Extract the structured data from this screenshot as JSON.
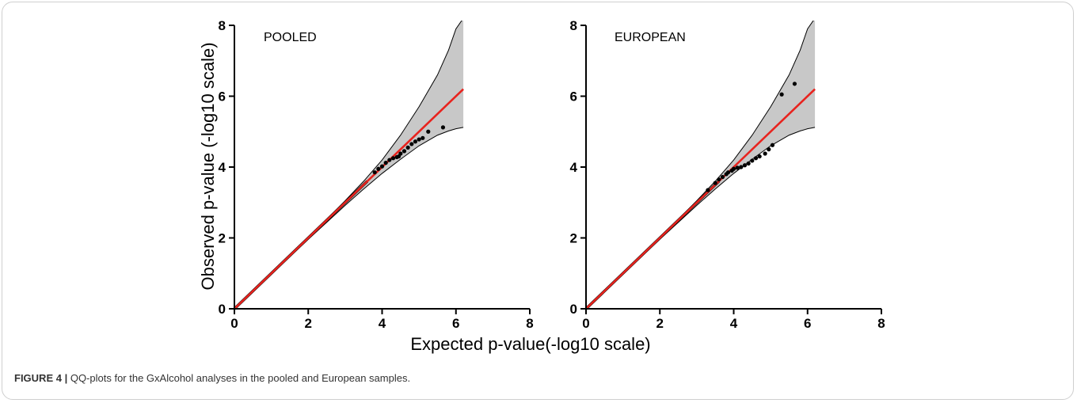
{
  "figure": {
    "caption_label": "FIGURE 4 |",
    "caption_text": "QQ-plots for the GxAlcohol analyses in the pooled and European samples."
  },
  "chart_data": [
    {
      "type": "scatter",
      "title": "POOLED",
      "ylabel": "Observed p-value (-log10 scale)",
      "xlabel": "Expected p-value(-log10 scale)",
      "xlim": [
        0,
        8
      ],
      "ylim": [
        0,
        8
      ],
      "xticks": [
        0,
        2,
        4,
        6,
        8
      ],
      "yticks": [
        0,
        2,
        4,
        6,
        8
      ],
      "colors": {
        "reference_line": "#e8231e",
        "points": "#000000",
        "band": "#c8c8c8"
      },
      "reference_line": {
        "x": [
          0,
          6.2
        ],
        "y": [
          0,
          6.2
        ]
      },
      "confidence_band": {
        "x": [
          0,
          1,
          2,
          3,
          3.5,
          4,
          4.5,
          5,
          5.5,
          5.8,
          6.0,
          6.2
        ],
        "upper": [
          0,
          1,
          2,
          3.05,
          3.6,
          4.2,
          4.9,
          5.7,
          6.6,
          7.3,
          7.9,
          8.2
        ],
        "lower": [
          0,
          0.98,
          1.96,
          2.92,
          3.38,
          3.82,
          4.22,
          4.6,
          4.9,
          5.02,
          5.08,
          5.12
        ]
      },
      "points": [
        {
          "x": 3.8,
          "y": 3.85
        },
        {
          "x": 3.9,
          "y": 3.95
        },
        {
          "x": 4.0,
          "y": 4.02
        },
        {
          "x": 4.1,
          "y": 4.12
        },
        {
          "x": 4.2,
          "y": 4.2
        },
        {
          "x": 4.3,
          "y": 4.25
        },
        {
          "x": 4.4,
          "y": 4.28
        },
        {
          "x": 4.45,
          "y": 4.3
        },
        {
          "x": 4.5,
          "y": 4.38
        },
        {
          "x": 4.6,
          "y": 4.45
        },
        {
          "x": 4.7,
          "y": 4.55
        },
        {
          "x": 4.8,
          "y": 4.65
        },
        {
          "x": 4.9,
          "y": 4.72
        },
        {
          "x": 5.0,
          "y": 4.78
        },
        {
          "x": 5.1,
          "y": 4.82
        },
        {
          "x": 5.25,
          "y": 5.0
        },
        {
          "x": 5.65,
          "y": 5.12
        }
      ]
    },
    {
      "type": "scatter",
      "title": "EUROPEAN",
      "ylabel": "",
      "xlabel": "",
      "xlim": [
        0,
        8
      ],
      "ylim": [
        0,
        8
      ],
      "xticks": [
        0,
        2,
        4,
        6,
        8
      ],
      "yticks": [
        0,
        2,
        4,
        6,
        8
      ],
      "colors": {
        "reference_line": "#e8231e",
        "points": "#000000",
        "band": "#c8c8c8"
      },
      "reference_line": {
        "x": [
          0,
          6.2
        ],
        "y": [
          0,
          6.2
        ]
      },
      "confidence_band": {
        "x": [
          0,
          1,
          2,
          3,
          3.5,
          4,
          4.5,
          5,
          5.5,
          5.8,
          6.0,
          6.2
        ],
        "upper": [
          0,
          1,
          2,
          3.05,
          3.6,
          4.2,
          4.9,
          5.7,
          6.6,
          7.3,
          7.9,
          8.2
        ],
        "lower": [
          0,
          0.98,
          1.96,
          2.92,
          3.38,
          3.82,
          4.22,
          4.6,
          4.9,
          5.02,
          5.08,
          5.12
        ]
      },
      "points": [
        {
          "x": 3.3,
          "y": 3.35
        },
        {
          "x": 3.5,
          "y": 3.55
        },
        {
          "x": 3.6,
          "y": 3.65
        },
        {
          "x": 3.7,
          "y": 3.72
        },
        {
          "x": 3.8,
          "y": 3.8
        },
        {
          "x": 3.85,
          "y": 3.85
        },
        {
          "x": 3.95,
          "y": 3.9
        },
        {
          "x": 4.0,
          "y": 3.95
        },
        {
          "x": 4.1,
          "y": 3.98
        },
        {
          "x": 4.2,
          "y": 4.0
        },
        {
          "x": 4.3,
          "y": 4.05
        },
        {
          "x": 4.4,
          "y": 4.1
        },
        {
          "x": 4.5,
          "y": 4.18
        },
        {
          "x": 4.6,
          "y": 4.25
        },
        {
          "x": 4.7,
          "y": 4.3
        },
        {
          "x": 4.85,
          "y": 4.38
        },
        {
          "x": 4.95,
          "y": 4.5
        },
        {
          "x": 5.05,
          "y": 4.62
        },
        {
          "x": 5.3,
          "y": 6.05
        },
        {
          "x": 5.65,
          "y": 6.35
        }
      ]
    }
  ]
}
